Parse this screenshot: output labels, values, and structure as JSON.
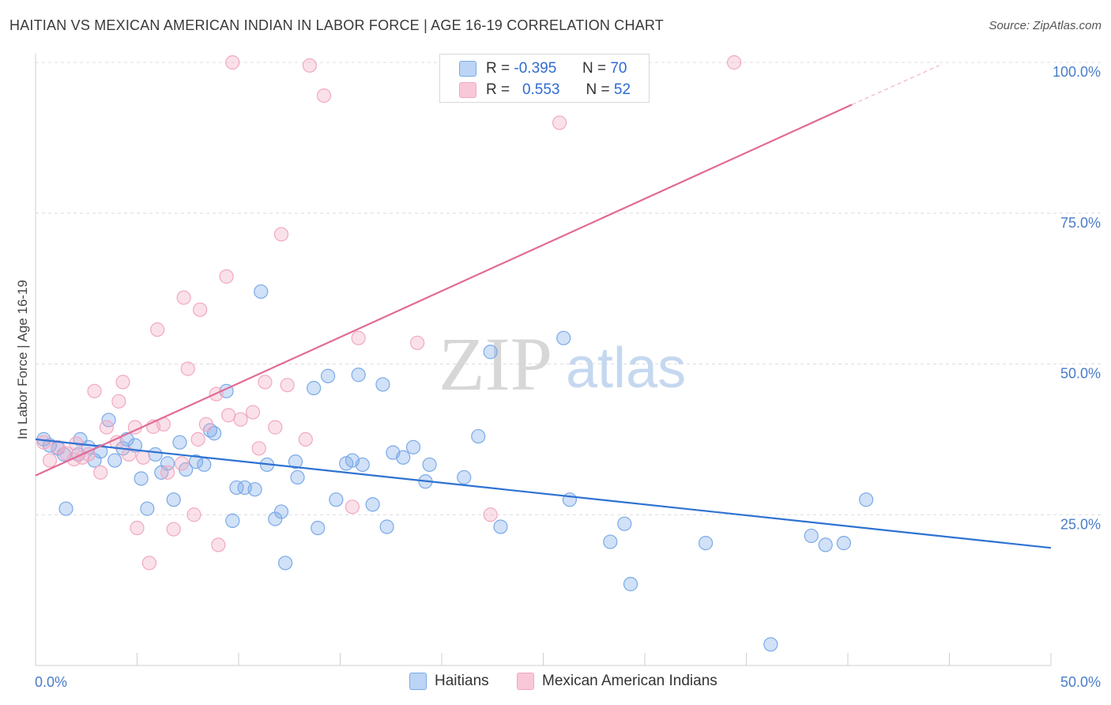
{
  "header": {
    "title": "HAITIAN VS MEXICAN AMERICAN INDIAN IN LABOR FORCE | AGE 16-19 CORRELATION CHART",
    "source": "Source: ZipAtlas.com"
  },
  "watermark": {
    "zip": "ZIP",
    "atlas": "atlas"
  },
  "legend": {
    "rows": [
      {
        "r_label": "R =",
        "r_value": "-0.395",
        "n_label": "N =",
        "n_value": "70"
      },
      {
        "r_label": "R =",
        "r_value": "0.553",
        "n_label": "N =",
        "n_value": "52"
      }
    ]
  },
  "chart_data": {
    "type": "scatter",
    "ylabel": "In Labor Force | Age 16-19",
    "xlim": [
      0,
      50
    ],
    "ylim": [
      0,
      100
    ],
    "x_tick_labels": [
      "0.0%",
      "50.0%"
    ],
    "y_tick_labels": [
      "100.0%",
      "75.0%",
      "50.0%",
      "25.0%"
    ],
    "y_ticks": [
      100,
      75,
      50,
      25
    ],
    "grid": true,
    "legend_position": "bottom",
    "series": [
      {
        "name": "Haitians",
        "color": "#7aaae8",
        "line_color": "#2e72d2",
        "trend": {
          "x": [
            0,
            50
          ],
          "y": [
            37.5,
            19.5
          ]
        },
        "points": [
          [
            0.4,
            37.5
          ],
          [
            0.7,
            36.5
          ],
          [
            1.1,
            36
          ],
          [
            1.4,
            35
          ],
          [
            1.5,
            26
          ],
          [
            2.1,
            35
          ],
          [
            2.2,
            37.5
          ],
          [
            2.6,
            36.2
          ],
          [
            2.9,
            34
          ],
          [
            3.2,
            35.5
          ],
          [
            3.6,
            40.7
          ],
          [
            3.9,
            34
          ],
          [
            4.3,
            36
          ],
          [
            4.5,
            37.5
          ],
          [
            4.9,
            36.5
          ],
          [
            5.2,
            31
          ],
          [
            5.5,
            26
          ],
          [
            5.9,
            35
          ],
          [
            6.2,
            32
          ],
          [
            6.5,
            33.5
          ],
          [
            6.8,
            27.5
          ],
          [
            7.1,
            37
          ],
          [
            7.4,
            32.5
          ],
          [
            7.9,
            33.8
          ],
          [
            8.3,
            33.3
          ],
          [
            8.6,
            39
          ],
          [
            8.8,
            38.5
          ],
          [
            9.4,
            45.5
          ],
          [
            9.7,
            24
          ],
          [
            9.9,
            29.5
          ],
          [
            10.3,
            29.5
          ],
          [
            10.8,
            29.2
          ],
          [
            11.1,
            62
          ],
          [
            11.4,
            33.3
          ],
          [
            11.8,
            24.3
          ],
          [
            12.1,
            25.5
          ],
          [
            12.3,
            17
          ],
          [
            12.8,
            33.8
          ],
          [
            12.9,
            31.2
          ],
          [
            13.7,
            46
          ],
          [
            13.9,
            22.8
          ],
          [
            14.4,
            48
          ],
          [
            14.8,
            27.5
          ],
          [
            15.3,
            33.5
          ],
          [
            15.6,
            34
          ],
          [
            15.9,
            48.2
          ],
          [
            16.1,
            33.3
          ],
          [
            16.6,
            26.7
          ],
          [
            17.1,
            46.6
          ],
          [
            17.3,
            23
          ],
          [
            17.6,
            35.3
          ],
          [
            18.1,
            34.5
          ],
          [
            18.6,
            36.2
          ],
          [
            19.2,
            30.5
          ],
          [
            19.4,
            33.3
          ],
          [
            21.1,
            31.2
          ],
          [
            21.8,
            38
          ],
          [
            22.4,
            52
          ],
          [
            22.9,
            23
          ],
          [
            26.0,
            54.3
          ],
          [
            26.3,
            27.5
          ],
          [
            28.3,
            20.5
          ],
          [
            29.0,
            23.5
          ],
          [
            29.3,
            13.5
          ],
          [
            33.0,
            20.3
          ],
          [
            36.2,
            3.5
          ],
          [
            38.2,
            21.5
          ],
          [
            38.9,
            20
          ],
          [
            39.8,
            20.3
          ],
          [
            40.9,
            27.5
          ]
        ]
      },
      {
        "name": "Mexican American Indians",
        "color": "#f2a8c0",
        "line_color": "#e26a94",
        "trend": {
          "x": [
            0,
            40.2
          ],
          "y": [
            31.5,
            93
          ]
        },
        "trend_dashed": {
          "x": [
            40.2,
            44.5
          ],
          "y": [
            93,
            99.5
          ]
        },
        "points": [
          [
            0.4,
            37
          ],
          [
            0.7,
            34
          ],
          [
            1.1,
            36.2
          ],
          [
            1.5,
            35.2
          ],
          [
            1.9,
            34.2
          ],
          [
            2.3,
            34.5
          ],
          [
            2.6,
            35
          ],
          [
            2.9,
            45.5
          ],
          [
            3.2,
            32
          ],
          [
            3.5,
            39.5
          ],
          [
            4.1,
            43.8
          ],
          [
            4.3,
            47
          ],
          [
            4.6,
            35
          ],
          [
            4.9,
            39.5
          ],
          [
            5.0,
            22.8
          ],
          [
            5.3,
            34.5
          ],
          [
            5.6,
            17
          ],
          [
            5.8,
            39.6
          ],
          [
            6.0,
            55.7
          ],
          [
            6.3,
            40
          ],
          [
            6.5,
            32
          ],
          [
            6.8,
            22.6
          ],
          [
            7.2,
            33.5
          ],
          [
            7.3,
            61
          ],
          [
            7.5,
            49.2
          ],
          [
            7.8,
            25
          ],
          [
            8.1,
            59
          ],
          [
            8.4,
            40
          ],
          [
            8.9,
            45
          ],
          [
            9.0,
            20
          ],
          [
            9.4,
            64.5
          ],
          [
            9.5,
            41.5
          ],
          [
            9.7,
            100
          ],
          [
            10.1,
            40.8
          ],
          [
            10.7,
            42
          ],
          [
            11.3,
            47
          ],
          [
            11.8,
            39.5
          ],
          [
            12.1,
            71.5
          ],
          [
            12.4,
            46.5
          ],
          [
            13.3,
            37.5
          ],
          [
            13.5,
            99.5
          ],
          [
            14.2,
            94.5
          ],
          [
            15.6,
            26.3
          ],
          [
            15.9,
            54.3
          ],
          [
            18.8,
            53.5
          ],
          [
            22.4,
            25
          ],
          [
            25.8,
            90
          ],
          [
            34.4,
            100
          ],
          [
            4.0,
            37
          ],
          [
            2.0,
            36.8
          ],
          [
            8.0,
            37.5
          ],
          [
            11.0,
            36
          ]
        ]
      }
    ]
  }
}
